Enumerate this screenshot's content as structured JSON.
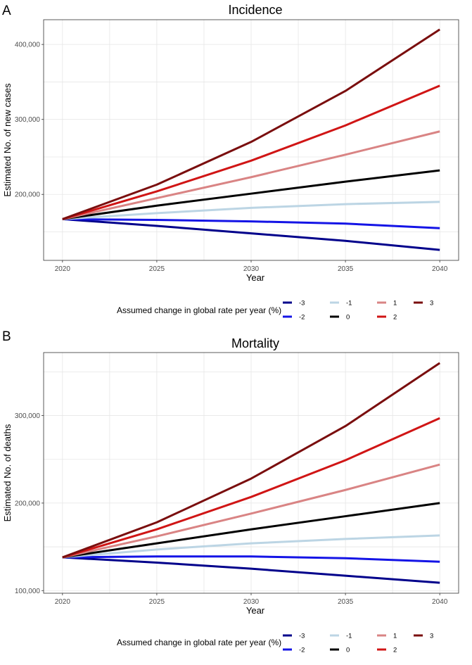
{
  "series_colors": {
    "-3": "#00008b",
    "-2": "#1414e6",
    "-1": "#bcd5e4",
    "0": "#000000",
    "1": "#d98484",
    "2": "#d01515",
    "3": "#7a0e0e"
  },
  "chart_data": [
    {
      "type": "line",
      "panel_label": "A",
      "title": "Incidence",
      "xlabel": "Year",
      "ylabel": "Estimated No. of new cases",
      "x": [
        2020,
        2025,
        2030,
        2035,
        2040
      ],
      "x_ticks": [
        2020,
        2025,
        2030,
        2035,
        2040
      ],
      "y_ticks": [
        200000,
        300000,
        400000
      ],
      "y_tick_labels": [
        "200,000",
        "300,000",
        "400,000"
      ],
      "xlim": [
        2019,
        2041
      ],
      "ylim": [
        112000,
        433000
      ],
      "grid": true,
      "legend_title": "Assumed change in global rate per year (%)",
      "legend_position": "bottom",
      "series": [
        {
          "name": "-3",
          "values": [
            167000,
            158000,
            148000,
            138000,
            126000
          ]
        },
        {
          "name": "-2",
          "values": [
            167000,
            166000,
            164000,
            161000,
            155000
          ]
        },
        {
          "name": "-1",
          "values": [
            167000,
            175000,
            182000,
            187000,
            190000
          ]
        },
        {
          "name": "0",
          "values": [
            167000,
            185000,
            201000,
            217000,
            232000
          ]
        },
        {
          "name": "1",
          "values": [
            167000,
            195000,
            223000,
            253000,
            284000
          ]
        },
        {
          "name": "2",
          "values": [
            167000,
            204000,
            245000,
            292000,
            345000
          ]
        },
        {
          "name": "3",
          "values": [
            167000,
            213000,
            270000,
            338000,
            420000
          ]
        }
      ]
    },
    {
      "type": "line",
      "panel_label": "B",
      "title": "Mortality",
      "xlabel": "Year",
      "ylabel": "Estimated No. of deaths",
      "x": [
        2020,
        2025,
        2030,
        2035,
        2040
      ],
      "x_ticks": [
        2020,
        2025,
        2030,
        2035,
        2040
      ],
      "y_ticks": [
        100000,
        200000,
        300000
      ],
      "y_tick_labels": [
        "100,000",
        "200,000",
        "300,000"
      ],
      "xlim": [
        2019,
        2041
      ],
      "ylim": [
        97000,
        372000
      ],
      "grid": true,
      "legend_title": "Assumed change in global rate per year (%)",
      "legend_position": "bottom",
      "series": [
        {
          "name": "-3",
          "values": [
            138000,
            132000,
            125000,
            117000,
            109000
          ]
        },
        {
          "name": "-2",
          "values": [
            138000,
            139000,
            139000,
            137000,
            133000
          ]
        },
        {
          "name": "-1",
          "values": [
            138000,
            147000,
            154000,
            159000,
            163000
          ]
        },
        {
          "name": "0",
          "values": [
            138000,
            154000,
            170000,
            185000,
            200000
          ]
        },
        {
          "name": "1",
          "values": [
            138000,
            162000,
            188000,
            215000,
            244000
          ]
        },
        {
          "name": "2",
          "values": [
            138000,
            170000,
            207000,
            249000,
            297000
          ]
        },
        {
          "name": "3",
          "values": [
            138000,
            178000,
            228000,
            288000,
            360000
          ]
        }
      ]
    }
  ]
}
